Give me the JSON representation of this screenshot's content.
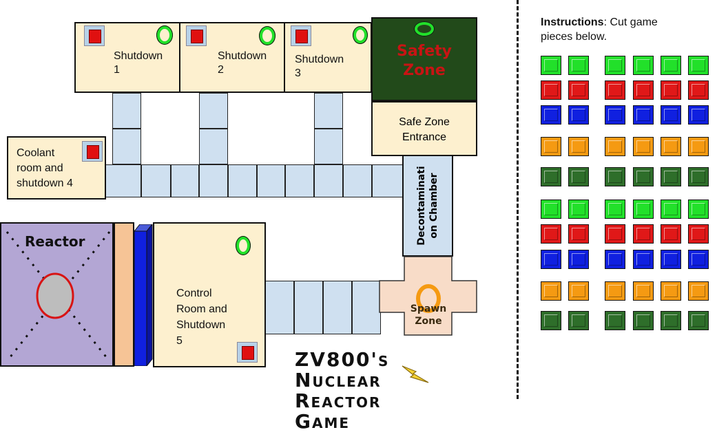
{
  "rooms": {
    "shutdown1": {
      "line1": "Shutdown",
      "line2": "1"
    },
    "shutdown2": {
      "line1": "Shutdown",
      "line2": "2"
    },
    "shutdown3": {
      "line1": "Shutdown",
      "line2": "3"
    },
    "safety_zone": {
      "line1": "Safety",
      "line2": "Zone"
    },
    "safe_zone_entrance": {
      "line1": "Safe Zone",
      "line2": "Entrance"
    },
    "coolant": {
      "line1": "Coolant",
      "line2": "room and",
      "line3": "shutdown 4"
    },
    "decon": {
      "line1": "Decontaminati",
      "line2": "on Chamber"
    },
    "reactor": {
      "label": "Reactor"
    },
    "control_room": {
      "line1": "Control",
      "line2": "Room and",
      "line3": "Shutdown",
      "line4": "5"
    },
    "spawn_zone": {
      "line1": "Spawn",
      "line2": "Zone"
    }
  },
  "title": {
    "line1": "ZV800's",
    "line2": "Nuclear",
    "line3": "Reactor",
    "line4": "Game"
  },
  "instructions": {
    "bold": "Instructions",
    "rest": ": Cut game",
    "line2": "pieces below."
  },
  "colors": {
    "green": "#22e02a",
    "red": "#e01818",
    "blue": "#1020e0",
    "orange": "#f59a12",
    "darkgreen": "#2e6e2a",
    "safety_bg": "#224a1a",
    "safety_text": "#c81414",
    "reactor_bg": "#b3a6d4",
    "spawn_bg": "#f8dcc8"
  },
  "pieces": {
    "row_colors": [
      "green",
      "red",
      "blue",
      "orange",
      "darkgreen",
      "green",
      "red",
      "blue",
      "orange",
      "darkgreen"
    ]
  }
}
